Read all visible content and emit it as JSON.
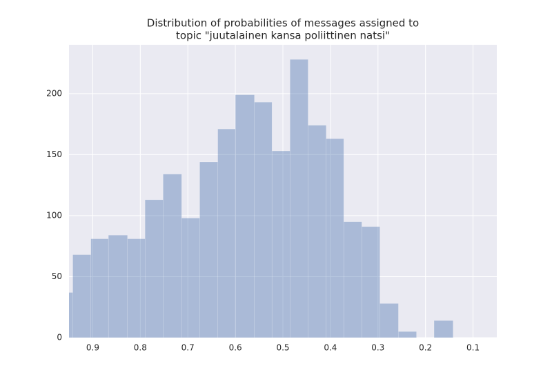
{
  "chart_data": {
    "type": "histogram",
    "title": [
      "Distribution of probabilities of messages assigned to",
      "topic \"juutalainen kansa poliittinen natsi\""
    ],
    "bins": [
      0.142,
      0.182,
      0.219,
      0.257,
      0.296,
      0.334,
      0.372,
      0.409,
      0.447,
      0.485,
      0.523,
      0.56,
      0.6,
      0.637,
      0.675,
      0.713,
      0.752,
      0.79,
      0.827,
      0.867,
      0.904,
      0.942,
      0.98
    ],
    "values": [
      14,
      0,
      5,
      28,
      91,
      95,
      163,
      174,
      228,
      153,
      193,
      199,
      171,
      144,
      98,
      134,
      113,
      81,
      84,
      81,
      68,
      37
    ],
    "color": "#4c72b0",
    "alpha": 0.4,
    "xlim": [
      0.95,
      0.05
    ],
    "xticks": [
      0.9,
      0.8,
      0.7,
      0.6,
      0.5,
      0.4,
      0.3,
      0.2,
      0.1
    ],
    "ylim": [
      0,
      240
    ],
    "yticks": [
      0,
      50,
      100,
      150,
      200
    ],
    "grid": true,
    "background": "#eaeaf2"
  }
}
